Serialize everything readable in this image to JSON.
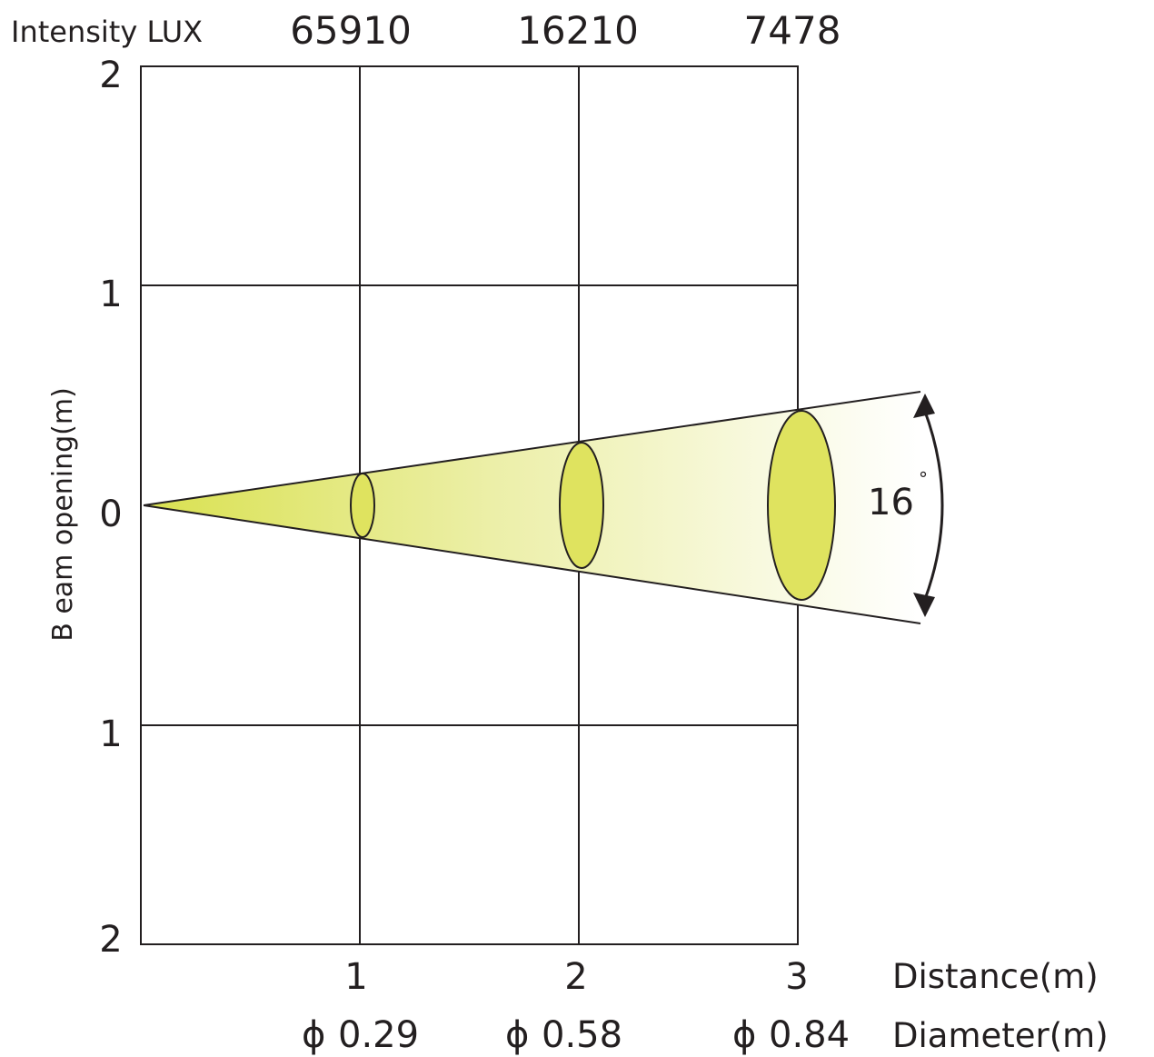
{
  "intensity": {
    "label": "Intensity LUX",
    "values": [
      "65910",
      "16210",
      "7478"
    ]
  },
  "y_axis": {
    "label": "B eam opening(m)",
    "ticks": [
      "2",
      "1",
      "0",
      "1",
      "2"
    ]
  },
  "distance": {
    "label": "Distance(m)",
    "ticks": [
      "1",
      "2",
      "3"
    ]
  },
  "diameter": {
    "label": "Diameter(m)",
    "symbol": "ϕ",
    "values": [
      "0.29",
      "0.58",
      "0.84"
    ]
  },
  "beam_angle": {
    "value": "16",
    "unit": "°"
  },
  "colors": {
    "beam_start": "#d9e14f",
    "beam_end": "#ffffff",
    "spot_fill": "#dfe35f",
    "line": "#231f20"
  }
}
